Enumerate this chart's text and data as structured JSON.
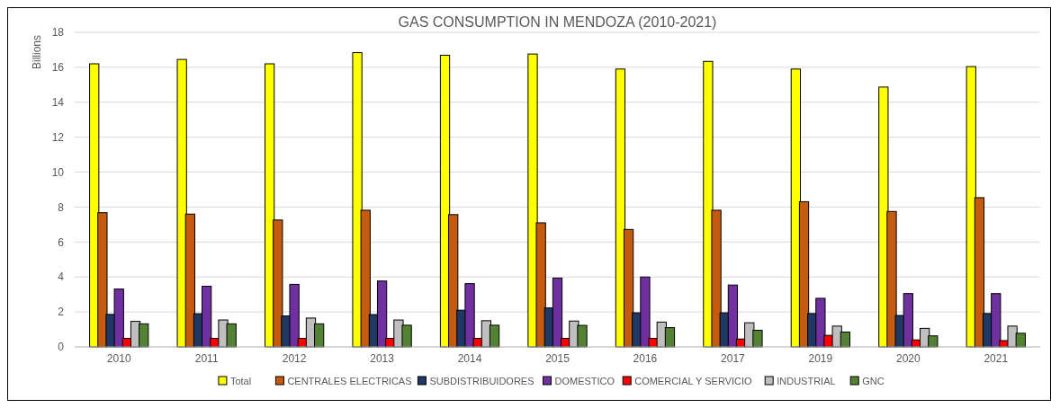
{
  "chart_data": {
    "type": "bar",
    "title": "GAS CONSUMPTION IN MENDOZA (2010-2021)",
    "ylabel": "Billions",
    "categories": [
      "2010",
      "2011",
      "2012",
      "2013",
      "2014",
      "2015",
      "2016",
      "2017",
      "2019",
      "2020",
      "2021"
    ],
    "series": [
      {
        "name": "Total",
        "color": "#ffff00",
        "values": [
          16.2,
          16.45,
          16.2,
          16.84,
          16.69,
          16.76,
          15.9,
          16.34,
          15.9,
          14.87,
          16.04
        ]
      },
      {
        "name": "CENTRALES ELECTRICAS",
        "color": "#c55a11",
        "values": [
          7.68,
          7.6,
          7.26,
          7.82,
          7.57,
          7.1,
          6.72,
          7.82,
          8.31,
          7.75,
          8.54
        ]
      },
      {
        "name": "SUBDISTRIBUIDORES",
        "color": "#203864",
        "values": [
          1.86,
          1.9,
          1.77,
          1.85,
          2.1,
          2.23,
          1.95,
          1.95,
          1.91,
          1.8,
          1.91
        ]
      },
      {
        "name": "DOMESTICO",
        "color": "#7030a0",
        "values": [
          3.31,
          3.47,
          3.58,
          3.77,
          3.62,
          3.94,
          4.0,
          3.54,
          2.78,
          3.05,
          3.05
        ]
      },
      {
        "name": "COMERCIAL Y SERVICIO",
        "color": "#ff0000",
        "values": [
          0.49,
          0.49,
          0.49,
          0.49,
          0.49,
          0.49,
          0.49,
          0.45,
          0.66,
          0.4,
          0.36
        ]
      },
      {
        "name": "INDUSTRIAL",
        "color": "#bfbfbf",
        "values": [
          1.46,
          1.54,
          1.65,
          1.54,
          1.5,
          1.48,
          1.42,
          1.38,
          1.19,
          1.06,
          1.19
        ]
      },
      {
        "name": "GNC",
        "color": "#548235",
        "values": [
          1.32,
          1.32,
          1.32,
          1.24,
          1.24,
          1.23,
          1.1,
          0.95,
          0.85,
          0.63,
          0.78
        ]
      }
    ],
    "ylim": [
      0,
      18
    ],
    "yticks": [
      0,
      2,
      4,
      6,
      8,
      10,
      12,
      14,
      16,
      18
    ],
    "grid": "y",
    "legend": "bottom"
  }
}
